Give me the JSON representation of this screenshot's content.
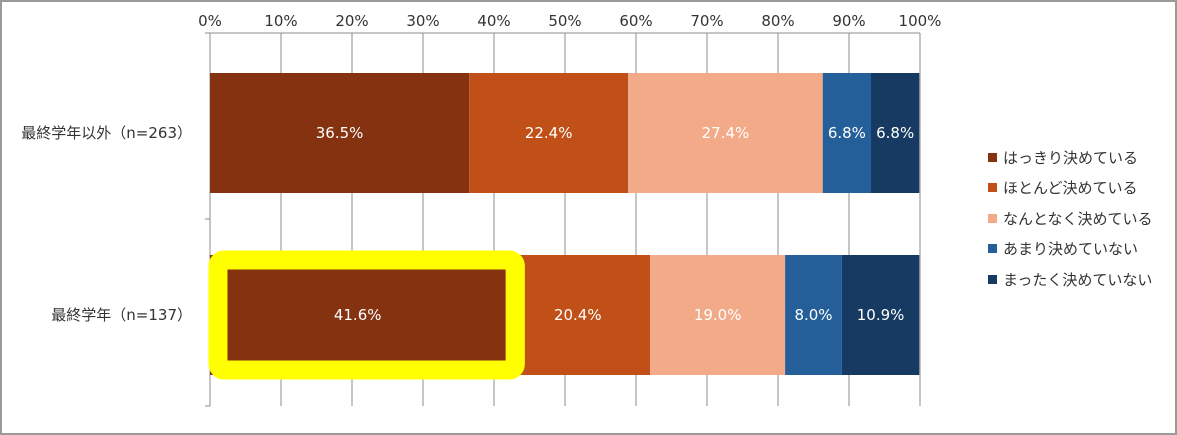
{
  "chart_data": {
    "type": "bar",
    "orientation": "horizontal-stacked-100",
    "x_ticks": [
      "0%",
      "10%",
      "20%",
      "30%",
      "40%",
      "50%",
      "60%",
      "70%",
      "80%",
      "90%",
      "100%"
    ],
    "xlim": [
      0,
      100
    ],
    "categories": [
      "最終学年以外（n=263）",
      "最終学年（n=137）"
    ],
    "series": [
      {
        "name": "はっきり決めている",
        "color": "#843210",
        "values": [
          36.5,
          41.6
        ],
        "labels": [
          "36.5%",
          "41.6%"
        ]
      },
      {
        "name": "ほとんど決めている",
        "color": "#c05017",
        "values": [
          22.4,
          20.4
        ],
        "labels": [
          "22.4%",
          "20.4%"
        ]
      },
      {
        "name": "なんとなく決めている",
        "color": "#f2aa89",
        "values": [
          27.4,
          19.0
        ],
        "labels": [
          "27.4%",
          "19.0%"
        ]
      },
      {
        "name": "あまり決めていない",
        "color": "#245f99",
        "values": [
          6.8,
          8.0
        ],
        "labels": [
          "6.8%",
          "8.0%"
        ]
      },
      {
        "name": "まったく決めていない",
        "color": "#173a62",
        "values": [
          6.8,
          10.9
        ],
        "labels": [
          "6.8%",
          "10.9%"
        ]
      }
    ],
    "highlight": {
      "category": "最終学年（n=137）",
      "series": "はっきり決めている",
      "color": "#ffff00"
    },
    "grid": true,
    "legend_position": "right"
  }
}
